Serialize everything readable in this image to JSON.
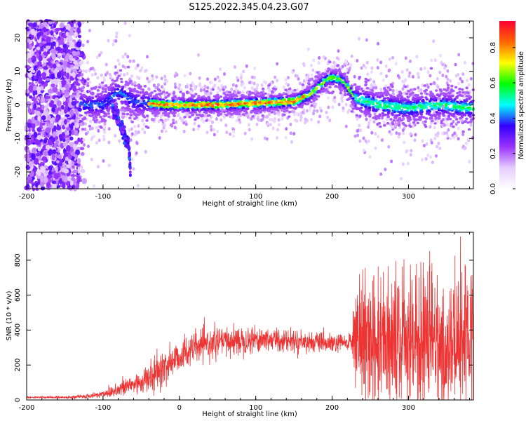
{
  "title": "S125.2022.345.04.23.G07",
  "chart_data": [
    {
      "type": "heatmap",
      "xlabel": "Height of straight line (km)",
      "ylabel": "Frequency (Hz)",
      "xlim": [
        -200,
        385
      ],
      "ylim": [
        -25,
        25
      ],
      "xticks": [
        "-200",
        "-100",
        "0",
        "100",
        "200",
        "300"
      ],
      "yticks": [
        "-20",
        "-10",
        "0",
        "10",
        "20"
      ],
      "colorbar": {
        "label": "Normalized spectral amplitude",
        "range": [
          0,
          0.95
        ],
        "ticks": [
          "0.0",
          "0.2",
          "0.4",
          "0.6",
          "0.8"
        ],
        "colormap": [
          "#ffffff",
          "#e6ccff",
          "#9933ff",
          "#3300ff",
          "#00ffff",
          "#00ff00",
          "#ffff00",
          "#ff6600",
          "#ff0033"
        ]
      },
      "ridge_profile": {
        "x": [
          -130,
          -120,
          -100,
          -80,
          -60,
          -40,
          -20,
          0,
          20,
          50,
          100,
          150,
          170,
          185,
          195,
          205,
          215,
          230,
          260,
          300,
          340,
          385
        ],
        "y": [
          0,
          0,
          0,
          4,
          1,
          0.5,
          0,
          0,
          0,
          0,
          0.5,
          1,
          3,
          6,
          8,
          8,
          7,
          2,
          0,
          -1,
          0,
          -1
        ]
      },
      "branch_profile": {
        "x": [
          -88,
          -80,
          -72,
          -66,
          -64
        ],
        "y": [
          -1,
          -4,
          -9,
          -13,
          -21
        ]
      },
      "noise_region": {
        "x": [
          -200,
          -130
        ],
        "y": [
          -25,
          25
        ]
      }
    },
    {
      "type": "line",
      "xlabel": "Height of straight line (km)",
      "ylabel": "SNR (10 * v/v)",
      "xlim": [
        -200,
        385
      ],
      "ylim": [
        0,
        960
      ],
      "xticks": [
        "-200",
        "-100",
        "0",
        "100",
        "200",
        "300"
      ],
      "yticks": [
        "0",
        "200",
        "400",
        "600",
        "800"
      ],
      "color": "#ee3333",
      "envelope": {
        "x": [
          -200,
          -150,
          -120,
          -100,
          -80,
          -60,
          -40,
          -25,
          -10,
          0,
          20,
          50,
          100,
          150,
          200,
          225,
          232,
          240,
          260,
          300,
          340,
          385
        ],
        "mean": [
          15,
          15,
          20,
          35,
          60,
          90,
          120,
          170,
          220,
          250,
          300,
          330,
          350,
          340,
          320,
          330,
          350,
          330,
          320,
          300,
          300,
          290
        ],
        "spread": [
          4,
          5,
          10,
          20,
          40,
          55,
          70,
          80,
          90,
          80,
          70,
          70,
          65,
          50,
          45,
          45,
          250,
          280,
          300,
          330,
          330,
          320
        ]
      }
    }
  ]
}
